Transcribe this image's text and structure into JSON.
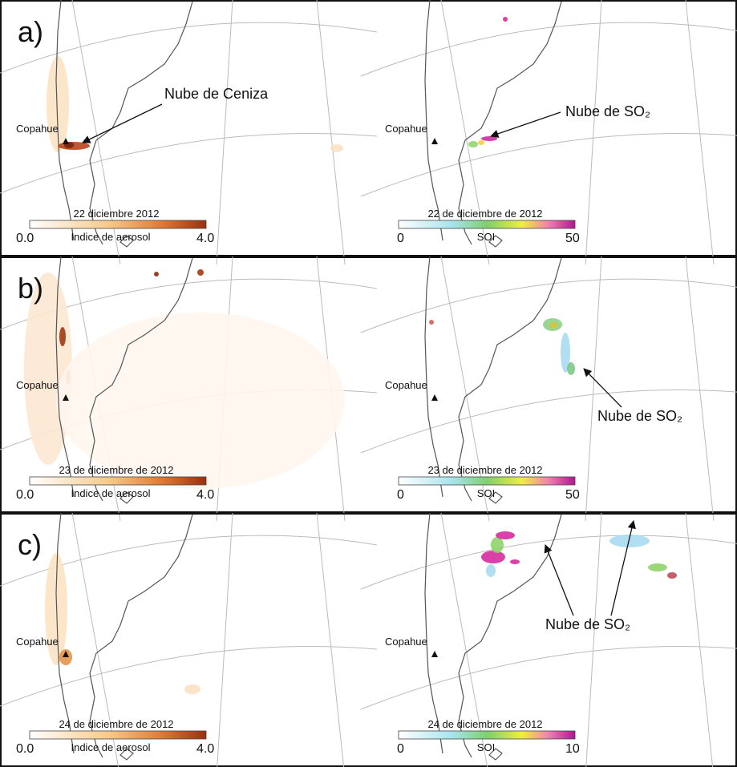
{
  "panels": [
    {
      "label": "a)",
      "left": {
        "volcano": "Copahue",
        "date": "22 diciembre 2012",
        "min": "0.0",
        "max": "4.0",
        "scale": "Indice de aerosol",
        "annotation": "Nube de Ceniza"
      },
      "right": {
        "volcano": "Copahue",
        "date": "22 de diciembre de 2012",
        "min": "0",
        "max": "50",
        "scale": "SOI",
        "annotation": "Nube de SO₂"
      }
    },
    {
      "label": "b)",
      "left": {
        "volcano": "Copahue",
        "date": "23 de diciembre de 2012",
        "min": "0.0",
        "max": "4.0",
        "scale": "Indice de aerosol"
      },
      "right": {
        "volcano": "Copahue",
        "date": "23 de diciembre de 2012",
        "min": "0",
        "max": "50",
        "scale": "SOI",
        "annotation": "Nube de SO₂"
      }
    },
    {
      "label": "c)",
      "left": {
        "volcano": "Copahue",
        "date": "24 de diciembre de 2012",
        "min": "0.0",
        "max": "4.0",
        "scale": "Indice de aerosol"
      },
      "right": {
        "volcano": "Copahue",
        "date": "24 de diciembre de 2012",
        "min": "0",
        "max": "10",
        "scale": "SOI",
        "annotation": "Nube de SO₂"
      }
    }
  ]
}
